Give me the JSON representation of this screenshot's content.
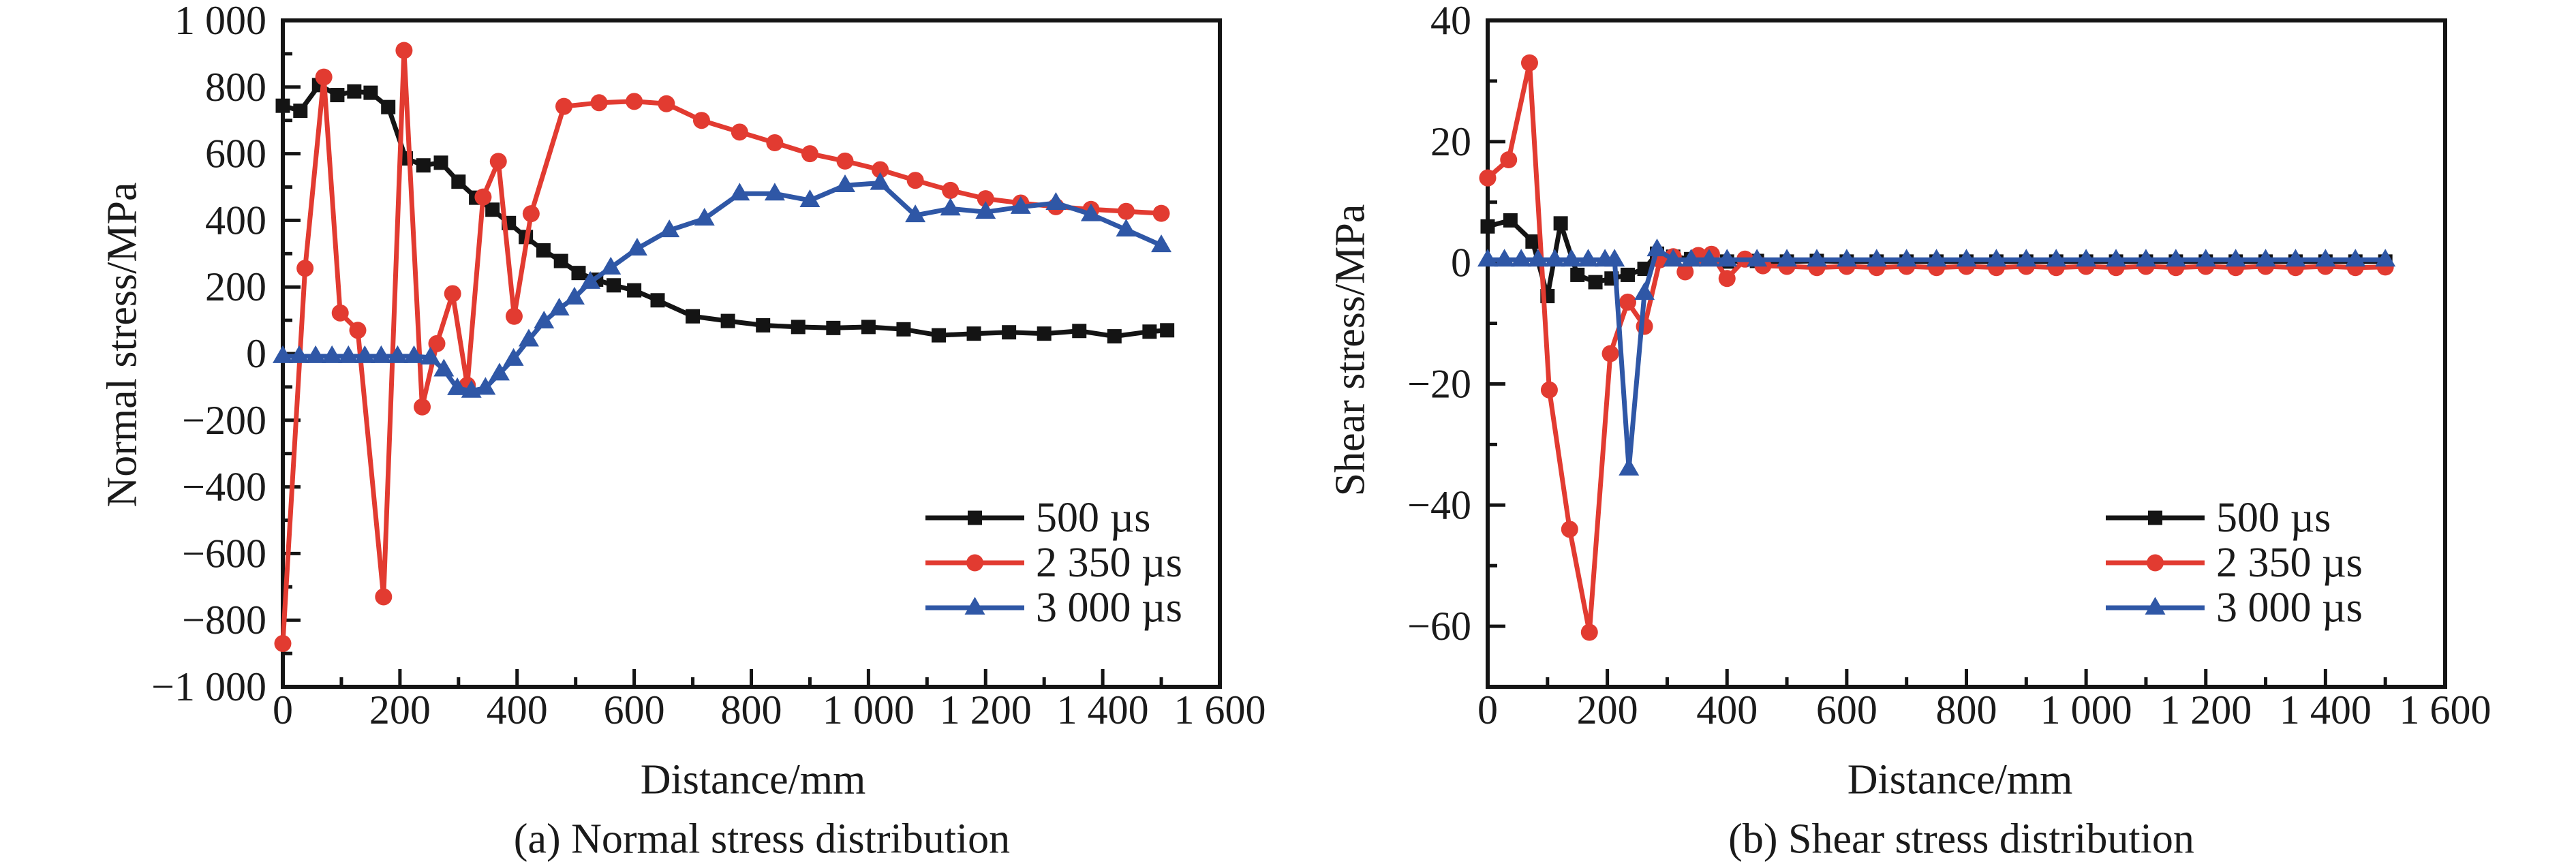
{
  "figure": {
    "panels": [
      {
        "id": "a",
        "ylabel": "Normal stress/MPa",
        "xlabel": "Distance/mm",
        "caption": "(a) Normal stress distribution"
      },
      {
        "id": "b",
        "ylabel": "Shear stress/MPa",
        "xlabel": "Distance/mm",
        "caption": "(b) Shear stress distribution"
      }
    ],
    "colors": {
      "black": "#141414",
      "red": "#e23b31",
      "blue": "#2f57a6"
    }
  },
  "chart_data": [
    {
      "type": "line",
      "title": "(a) Normal stress distribution",
      "xlabel": "Distance/mm",
      "ylabel": "Normal stress/MPa",
      "xlim": [
        0,
        1600
      ],
      "ylim": [
        -1000,
        1000
      ],
      "grid": false,
      "x_ticks": [
        0,
        200,
        400,
        600,
        800,
        1000,
        1200,
        1400,
        1600
      ],
      "x_tick_labels": [
        "0",
        "200",
        "400",
        "600",
        "800",
        "1 000",
        "1 200",
        "1 400",
        "1 600"
      ],
      "x_minor_step": 100,
      "y_ticks": [
        1000,
        800,
        600,
        400,
        200,
        0,
        -200,
        -400,
        -600,
        -800,
        -1000
      ],
      "y_tick_labels": [
        "1 000",
        "800",
        "600",
        "400",
        "200",
        "0",
        "−200",
        "−400",
        "−600",
        "−800",
        "−1 000"
      ],
      "y_minor_step": 100,
      "legend_position": "lower right",
      "series": [
        {
          "name": "500 µs",
          "color": "#141414",
          "marker": "square",
          "points": [
            [
              0,
              744
            ],
            [
              30,
              729
            ],
            [
              62,
              806
            ],
            [
              93,
              776
            ],
            [
              122,
              787
            ],
            [
              150,
              783
            ],
            [
              180,
              740
            ],
            [
              210,
              586
            ],
            [
              240,
              565
            ],
            [
              270,
              573
            ],
            [
              300,
              516
            ],
            [
              330,
              468
            ],
            [
              358,
              432
            ],
            [
              386,
              392
            ],
            [
              415,
              350
            ],
            [
              445,
              310
            ],
            [
              475,
              278
            ],
            [
              505,
              242
            ],
            [
              535,
              222
            ],
            [
              565,
              205
            ],
            [
              600,
              190
            ],
            [
              640,
              160
            ],
            [
              700,
              112
            ],
            [
              760,
              98
            ],
            [
              820,
              85
            ],
            [
              880,
              80
            ],
            [
              940,
              77
            ],
            [
              1000,
              80
            ],
            [
              1060,
              73
            ],
            [
              1120,
              55
            ],
            [
              1180,
              60
            ],
            [
              1240,
              64
            ],
            [
              1300,
              60
            ],
            [
              1360,
              68
            ],
            [
              1420,
              52
            ],
            [
              1480,
              66
            ],
            [
              1510,
              70
            ]
          ]
        },
        {
          "name": "2 350 µs",
          "color": "#e23b31",
          "marker": "circle",
          "points": [
            [
              0,
              -870
            ],
            [
              38,
              256
            ],
            [
              70,
              830
            ],
            [
              98,
              122
            ],
            [
              128,
              70
            ],
            [
              172,
              -730
            ],
            [
              207,
              910
            ],
            [
              238,
              -160
            ],
            [
              263,
              30
            ],
            [
              290,
              180
            ],
            [
              315,
              -95
            ],
            [
              342,
              470
            ],
            [
              368,
              577
            ],
            [
              395,
              112
            ],
            [
              424,
              420
            ],
            [
              480,
              742
            ],
            [
              540,
              753
            ],
            [
              600,
              757
            ],
            [
              655,
              750
            ],
            [
              715,
              700
            ],
            [
              780,
              665
            ],
            [
              840,
              633
            ],
            [
              900,
              600
            ],
            [
              960,
              578
            ],
            [
              1020,
              552
            ],
            [
              1080,
              520
            ],
            [
              1140,
              490
            ],
            [
              1200,
              465
            ],
            [
              1260,
              452
            ],
            [
              1320,
              441
            ],
            [
              1380,
              433
            ],
            [
              1440,
              427
            ],
            [
              1500,
              421
            ]
          ]
        },
        {
          "name": "3 000 µs",
          "color": "#2f57a6",
          "marker": "triangle",
          "points": [
            [
              0,
              -8
            ],
            [
              28,
              -8
            ],
            [
              56,
              -8
            ],
            [
              84,
              -8
            ],
            [
              112,
              -8
            ],
            [
              140,
              -8
            ],
            [
              168,
              -8
            ],
            [
              196,
              -8
            ],
            [
              224,
              -8
            ],
            [
              252,
              -12
            ],
            [
              275,
              -48
            ],
            [
              298,
              -104
            ],
            [
              322,
              -112
            ],
            [
              346,
              -103
            ],
            [
              370,
              -60
            ],
            [
              394,
              -16
            ],
            [
              420,
              42
            ],
            [
              446,
              96
            ],
            [
              472,
              135
            ],
            [
              498,
              168
            ],
            [
              525,
              215
            ],
            [
              560,
              258
            ],
            [
              605,
              315
            ],
            [
              660,
              370
            ],
            [
              720,
              405
            ],
            [
              780,
              480
            ],
            [
              840,
              480
            ],
            [
              900,
              460
            ],
            [
              960,
              505
            ],
            [
              1020,
              512
            ],
            [
              1080,
              415
            ],
            [
              1140,
              435
            ],
            [
              1200,
              425
            ],
            [
              1260,
              440
            ],
            [
              1320,
              452
            ],
            [
              1380,
              418
            ],
            [
              1440,
              372
            ],
            [
              1500,
              325
            ]
          ]
        }
      ]
    },
    {
      "type": "line",
      "title": "(b) Shear stress distribution",
      "xlabel": "Distance/mm",
      "ylabel": "Shear stress/MPa",
      "xlim": [
        0,
        1600
      ],
      "ylim": [
        -70,
        40
      ],
      "grid": false,
      "x_ticks": [
        0,
        200,
        400,
        600,
        800,
        1000,
        1200,
        1400,
        1600
      ],
      "x_tick_labels": [
        "0",
        "200",
        "400",
        "600",
        "800",
        "1 000",
        "1 200",
        "1 400",
        "1 600"
      ],
      "x_minor_step": 100,
      "y_ticks": [
        40,
        20,
        0,
        -20,
        -40,
        -60
      ],
      "y_tick_labels": [
        "40",
        "20",
        "0",
        "−20",
        "−40",
        "−60"
      ],
      "y_minor_step": 10,
      "legend_position": "lower right",
      "series": [
        {
          "name": "500 µs",
          "color": "#141414",
          "marker": "square",
          "points": [
            [
              0,
              6
            ],
            [
              38,
              7
            ],
            [
              75,
              3.5
            ],
            [
              100,
              -5.5
            ],
            [
              122,
              6.5
            ],
            [
              150,
              -2
            ],
            [
              180,
              -3.2
            ],
            [
              207,
              -2.6
            ],
            [
              234,
              -2
            ],
            [
              262,
              -1
            ],
            [
              283,
              1.5
            ],
            [
              310,
              1
            ],
            [
              340,
              0.6
            ],
            [
              370,
              0.8
            ],
            [
              400,
              0.2
            ],
            [
              450,
              0.3
            ],
            [
              500,
              0.2
            ],
            [
              550,
              0.3
            ],
            [
              600,
              0.2
            ],
            [
              650,
              0.2
            ],
            [
              700,
              0.2
            ],
            [
              750,
              0.2
            ],
            [
              800,
              0.2
            ],
            [
              850,
              0.2
            ],
            [
              900,
              0.2
            ],
            [
              950,
              0.2
            ],
            [
              1000,
              0.2
            ],
            [
              1050,
              0.2
            ],
            [
              1100,
              0.2
            ],
            [
              1150,
              0.2
            ],
            [
              1200,
              0.2
            ],
            [
              1250,
              0.2
            ],
            [
              1300,
              0.2
            ],
            [
              1350,
              0.2
            ],
            [
              1400,
              0.2
            ],
            [
              1450,
              0.2
            ],
            [
              1500,
              0.2
            ]
          ]
        },
        {
          "name": "2 350 µs",
          "color": "#e23b31",
          "marker": "circle",
          "points": [
            [
              0,
              14
            ],
            [
              35,
              17
            ],
            [
              70,
              33
            ],
            [
              103,
              -21
            ],
            [
              137,
              -44
            ],
            [
              170,
              -61
            ],
            [
              205,
              -15
            ],
            [
              234,
              -6.5
            ],
            [
              262,
              -10.5
            ],
            [
              288,
              0.5
            ],
            [
              310,
              1
            ],
            [
              330,
              -1.5
            ],
            [
              352,
              1.2
            ],
            [
              374,
              1.4
            ],
            [
              400,
              -2.6
            ],
            [
              430,
              0.6
            ],
            [
              460,
              -0.5
            ],
            [
              500,
              -0.6
            ],
            [
              550,
              -0.8
            ],
            [
              600,
              -0.6
            ],
            [
              650,
              -0.8
            ],
            [
              700,
              -0.6
            ],
            [
              750,
              -0.8
            ],
            [
              800,
              -0.6
            ],
            [
              850,
              -0.8
            ],
            [
              900,
              -0.6
            ],
            [
              950,
              -0.8
            ],
            [
              1000,
              -0.6
            ],
            [
              1050,
              -0.8
            ],
            [
              1100,
              -0.6
            ],
            [
              1150,
              -0.8
            ],
            [
              1200,
              -0.6
            ],
            [
              1250,
              -0.8
            ],
            [
              1300,
              -0.6
            ],
            [
              1350,
              -0.8
            ],
            [
              1400,
              -0.6
            ],
            [
              1450,
              -0.8
            ],
            [
              1500,
              -0.7
            ]
          ]
        },
        {
          "name": "3 000 µs",
          "color": "#2f57a6",
          "marker": "triangle",
          "points": [
            [
              0,
              0.5
            ],
            [
              28,
              0.5
            ],
            [
              56,
              0.5
            ],
            [
              84,
              0.5
            ],
            [
              112,
              0.5
            ],
            [
              140,
              0.5
            ],
            [
              168,
              0.5
            ],
            [
              196,
              0.5
            ],
            [
              212,
              0.5
            ],
            [
              236,
              -34
            ],
            [
              262,
              -5
            ],
            [
              283,
              2.2
            ],
            [
              310,
              0.5
            ],
            [
              340,
              0.5
            ],
            [
              370,
              0.5
            ],
            [
              400,
              0.5
            ],
            [
              450,
              0.5
            ],
            [
              500,
              0.5
            ],
            [
              550,
              0.5
            ],
            [
              600,
              0.5
            ],
            [
              650,
              0.5
            ],
            [
              700,
              0.5
            ],
            [
              750,
              0.5
            ],
            [
              800,
              0.5
            ],
            [
              850,
              0.5
            ],
            [
              900,
              0.5
            ],
            [
              950,
              0.5
            ],
            [
              1000,
              0.5
            ],
            [
              1050,
              0.5
            ],
            [
              1100,
              0.5
            ],
            [
              1150,
              0.5
            ],
            [
              1200,
              0.5
            ],
            [
              1250,
              0.5
            ],
            [
              1300,
              0.5
            ],
            [
              1350,
              0.5
            ],
            [
              1400,
              0.5
            ],
            [
              1450,
              0.5
            ],
            [
              1500,
              0.5
            ]
          ]
        }
      ]
    }
  ]
}
